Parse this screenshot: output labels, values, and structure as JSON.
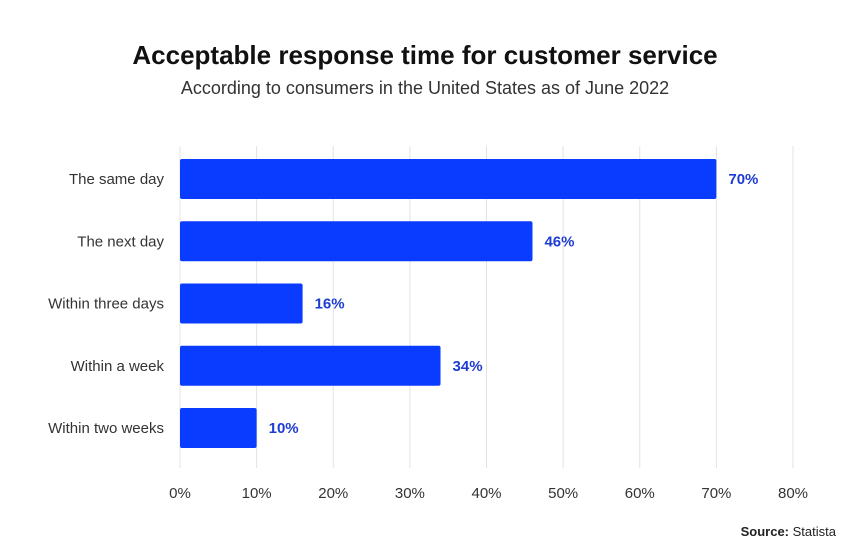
{
  "title": "Acceptable response time for customer service",
  "subtitle": "According to consumers in the United States as of June 2022",
  "source": {
    "label": "Source:",
    "name": "Statista"
  },
  "colors": {
    "bar": "#0a3cff",
    "value_label": "#1e3cd2",
    "grid": "#e3e3e3",
    "text": "#333333"
  },
  "chart_data": {
    "type": "bar",
    "orientation": "horizontal",
    "title": "Acceptable response time for customer service",
    "subtitle": "According to consumers in the United States as of June 2022",
    "categories": [
      "The same day",
      "The next day",
      "Within three days",
      "Within a week",
      "Within two weeks"
    ],
    "values": [
      70,
      46,
      16,
      34,
      10
    ],
    "value_labels": [
      "70%",
      "46%",
      "16%",
      "34%",
      "10%"
    ],
    "xlim": [
      0,
      80
    ],
    "xticks": [
      0,
      10,
      20,
      30,
      40,
      50,
      60,
      70,
      80
    ],
    "xtick_labels": [
      "0%",
      "10%",
      "20%",
      "30%",
      "40%",
      "50%",
      "60%",
      "70%",
      "80%"
    ],
    "xlabel": "",
    "ylabel": "",
    "grid": true
  }
}
